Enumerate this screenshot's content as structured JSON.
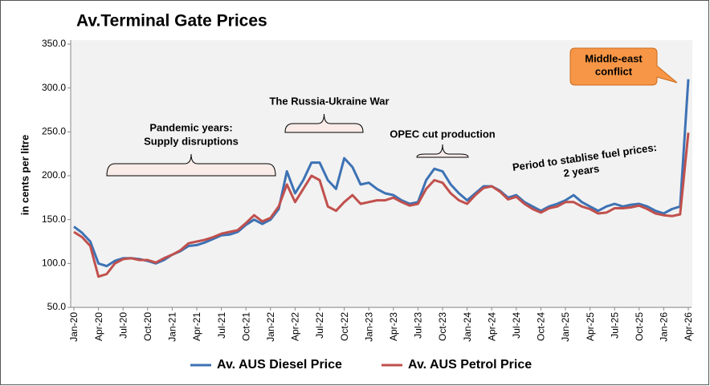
{
  "chart_data": {
    "type": "line",
    "title": "Av.Terminal Gate Prices",
    "y_label": "in cents per litre",
    "x": [
      "Jan-20",
      "Feb-20",
      "Mar-20",
      "Apr-20",
      "May-20",
      "Jun-20",
      "Jul-20",
      "Aug-20",
      "Sep-20",
      "Oct-20",
      "Nov-20",
      "Dec-20",
      "Jan-21",
      "Feb-21",
      "Mar-21",
      "Apr-21",
      "May-21",
      "Jun-21",
      "Jul-21",
      "Aug-21",
      "Sep-21",
      "Oct-21",
      "Nov-21",
      "Dec-21",
      "Jan-22",
      "Feb-22",
      "Mar-22",
      "Apr-22",
      "May-22",
      "Jun-22",
      "Jul-22",
      "Aug-22",
      "Sep-22",
      "Oct-22",
      "Nov-22",
      "Dec-22",
      "Jan-23",
      "Feb-23",
      "Mar-23",
      "Apr-23",
      "May-23",
      "Jun-23",
      "Jul-23",
      "Aug-23",
      "Sep-23",
      "Oct-23",
      "Nov-23",
      "Dec-23",
      "Jan-24",
      "Feb-24",
      "Mar-24",
      "Apr-24",
      "May-24",
      "Jun-24",
      "Jul-24",
      "Aug-24",
      "Sep-24",
      "Oct-24",
      "Nov-24",
      "Dec-24",
      "Jan-25",
      "Feb-25",
      "Mar-25",
      "Apr-25",
      "May-25",
      "Jun-25",
      "Jul-25",
      "Aug-25",
      "Sep-25",
      "Oct-25",
      "Nov-25",
      "Dec-25",
      "Jan-26",
      "Feb-26",
      "Mar-26",
      "Apr-26"
    ],
    "xticks": [
      "Jan-20",
      "Apr-20",
      "Jul-20",
      "Oct-20",
      "Jan-21",
      "Apr-21",
      "Jul-21",
      "Oct-21",
      "Jan-22",
      "Apr-22",
      "Jul-22",
      "Oct-22",
      "Jan-23",
      "Apr-23",
      "Jul-23",
      "Oct-23",
      "Jan-24",
      "Apr-24",
      "Jul-24",
      "Oct-24",
      "Jan-25",
      "Apr-25",
      "Jul-25",
      "Oct-25",
      "Jan-26",
      "Apr-26"
    ],
    "series": [
      {
        "name": "Av. AUS Diesel Price",
        "color": "#3d72b4",
        "values": [
          142,
          135,
          125,
          100,
          97,
          103,
          106,
          106,
          105,
          103,
          100,
          104,
          110,
          114,
          120,
          121,
          124,
          128,
          132,
          133,
          136,
          144,
          150,
          145,
          150,
          162,
          205,
          180,
          195,
          215,
          215,
          195,
          185,
          220,
          210,
          190,
          192,
          185,
          180,
          178,
          172,
          168,
          170,
          195,
          208,
          205,
          190,
          180,
          172,
          180,
          188,
          188,
          183,
          175,
          178,
          170,
          165,
          160,
          165,
          168,
          172,
          178,
          170,
          165,
          160,
          165,
          168,
          165,
          167,
          168,
          165,
          160,
          157,
          162,
          165,
          310
        ]
      },
      {
        "name": "Av. AUS Petrol Price",
        "color": "#c0504d",
        "values": [
          136,
          130,
          120,
          85,
          88,
          100,
          105,
          106,
          104,
          104,
          101,
          106,
          110,
          115,
          123,
          125,
          127,
          130,
          134,
          136,
          138,
          146,
          155,
          148,
          152,
          165,
          190,
          170,
          185,
          200,
          195,
          165,
          160,
          170,
          178,
          168,
          170,
          172,
          172,
          175,
          170,
          166,
          168,
          185,
          195,
          192,
          180,
          172,
          168,
          178,
          186,
          188,
          182,
          173,
          176,
          168,
          162,
          158,
          163,
          165,
          170,
          170,
          165,
          162,
          157,
          158,
          163,
          163,
          164,
          166,
          162,
          157,
          155,
          154,
          156,
          249
        ]
      }
    ],
    "ylim": [
      50,
      350
    ],
    "yticks": [
      {
        "value": 50,
        "label": "50.0"
      },
      {
        "value": 100,
        "label": "100.0"
      },
      {
        "value": 150,
        "label": "150.0"
      },
      {
        "value": 200,
        "label": "200.0"
      },
      {
        "value": 250,
        "label": "250.0"
      },
      {
        "value": 300,
        "label": "300.0"
      },
      {
        "value": 350,
        "label": "350.0"
      }
    ],
    "grid": false,
    "legend": "bottom",
    "annotations": [
      {
        "lines": [
          "Pandemic years:",
          "Supply disruptions"
        ]
      },
      {
        "lines": [
          "The Russia-Ukraine War"
        ]
      },
      {
        "lines": [
          "OPEC cut production"
        ]
      },
      {
        "lines": [
          "Period to stablise fuel prices:",
          "2 years"
        ]
      },
      {
        "lines": [
          "Middle-east",
          "conflict"
        ]
      }
    ]
  }
}
